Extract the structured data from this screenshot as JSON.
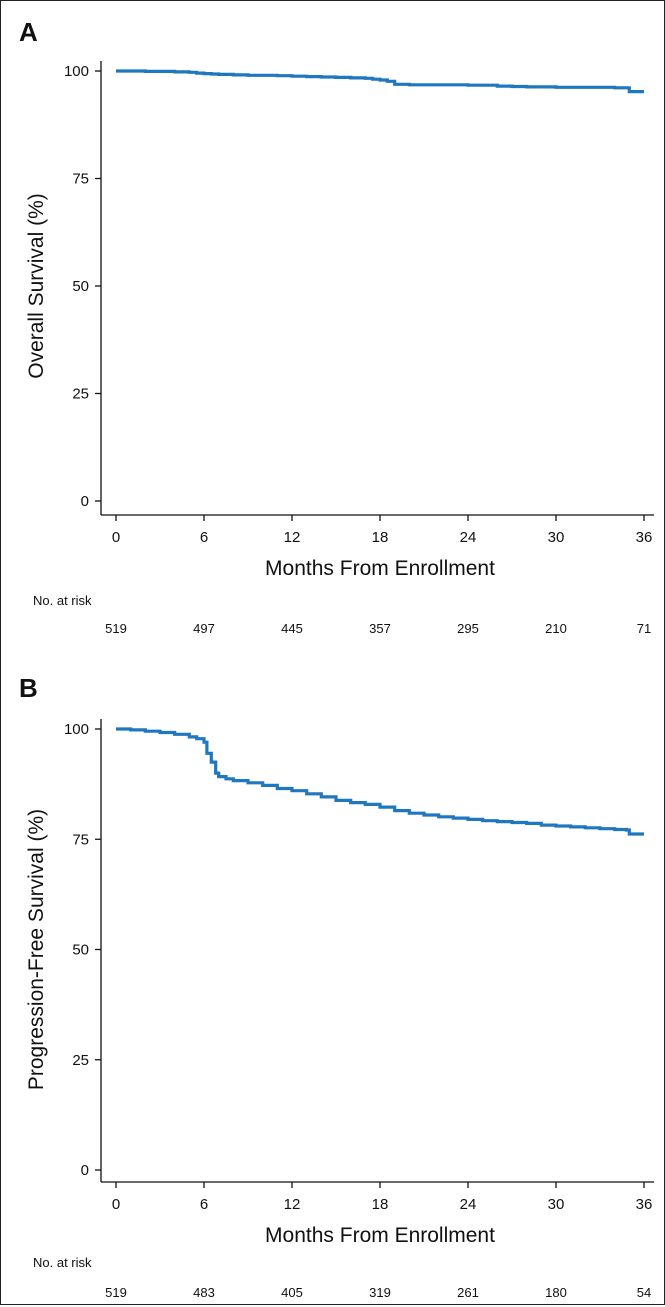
{
  "chart_data": [
    {
      "type": "line",
      "panel_label": "A",
      "xlabel": "Months From Enrollment",
      "ylabel": "Overall Survival (%)",
      "xlim": [
        0,
        36
      ],
      "ylim": [
        0,
        100
      ],
      "x_ticks": [
        "0",
        "6",
        "12",
        "18",
        "24",
        "30",
        "36"
      ],
      "y_ticks": [
        "0",
        "25",
        "50",
        "75",
        "100"
      ],
      "line_color": "#1f77c0",
      "series": [
        {
          "x": [
            0,
            1,
            2,
            3,
            4,
            5,
            5.5,
            6,
            6.5,
            7,
            8,
            9,
            10,
            11,
            12,
            13,
            14,
            15,
            16,
            17,
            17.5,
            18,
            18.5,
            19,
            20,
            21,
            22,
            24,
            25,
            26,
            27,
            28,
            30,
            32,
            34,
            34.8,
            35,
            36
          ],
          "y": [
            100,
            100,
            99.9,
            99.9,
            99.8,
            99.7,
            99.5,
            99.4,
            99.3,
            99.2,
            99.1,
            99.0,
            99.0,
            98.9,
            98.8,
            98.7,
            98.6,
            98.5,
            98.4,
            98.3,
            98.1,
            97.9,
            97.6,
            96.9,
            96.8,
            96.8,
            96.8,
            96.7,
            96.7,
            96.5,
            96.4,
            96.3,
            96.2,
            96.2,
            96.1,
            96.1,
            95.2,
            95.2
          ]
        }
      ],
      "at_risk": {
        "label": "No. at risk",
        "values": [
          "519",
          "497",
          "445",
          "357",
          "295",
          "210",
          "71"
        ]
      }
    },
    {
      "type": "line",
      "panel_label": "B",
      "xlabel": "Months From Enrollment",
      "ylabel": "Progression-Free Survival (%)",
      "xlim": [
        0,
        36
      ],
      "ylim": [
        0,
        100
      ],
      "x_ticks": [
        "0",
        "6",
        "12",
        "18",
        "24",
        "30",
        "36"
      ],
      "y_ticks": [
        "0",
        "25",
        "50",
        "75",
        "100"
      ],
      "line_color": "#1f77c0",
      "series": [
        {
          "x": [
            0,
            1,
            2,
            3,
            4,
            5,
            5.5,
            6,
            6.2,
            6.5,
            6.8,
            7,
            7.5,
            8,
            9,
            10,
            11,
            12,
            13,
            14,
            15,
            16,
            17,
            18,
            19,
            20,
            21,
            22,
            23,
            24,
            25,
            26,
            27,
            28,
            29,
            30,
            31,
            32,
            33,
            34,
            34.8,
            35,
            36
          ],
          "y": [
            100,
            99.8,
            99.5,
            99.2,
            98.8,
            98.2,
            97.8,
            97.0,
            94.5,
            92.5,
            90.0,
            89.2,
            88.7,
            88.3,
            87.8,
            87.2,
            86.5,
            86.0,
            85.3,
            84.6,
            83.8,
            83.3,
            82.9,
            82.3,
            81.5,
            80.9,
            80.5,
            80.1,
            79.8,
            79.5,
            79.2,
            79.0,
            78.8,
            78.6,
            78.2,
            78.0,
            77.8,
            77.6,
            77.4,
            77.2,
            77.1,
            76.2,
            76.2
          ]
        }
      ],
      "at_risk": {
        "label": "No. at risk",
        "values": [
          "519",
          "483",
          "405",
          "319",
          "261",
          "180",
          "54"
        ]
      }
    }
  ]
}
